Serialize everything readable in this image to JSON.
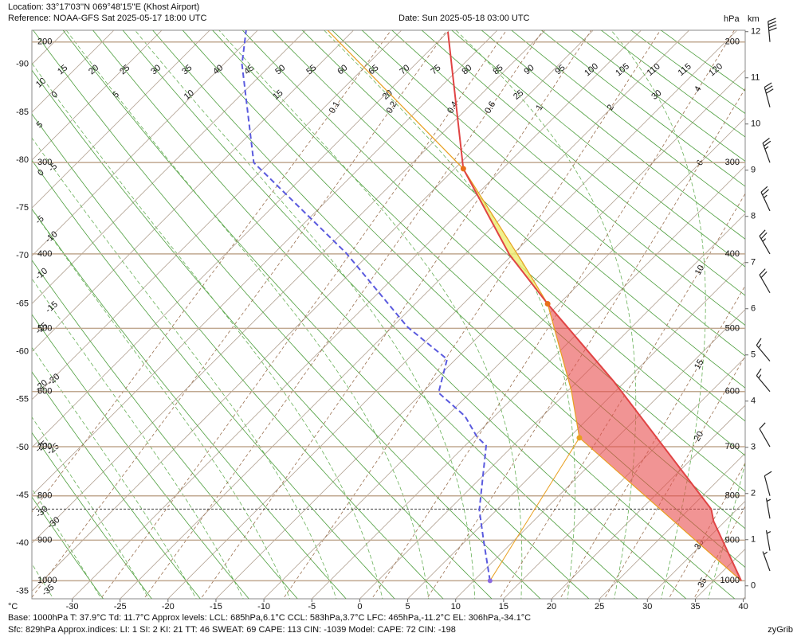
{
  "header": {
    "location": "Location:  33°17'03''N  069°48'15''E (Khost Airport)",
    "reference": "Reference: NOAA-GFS Sat 2025-05-17 18:00 UTC",
    "date": "Date: Sun 2025-05-18 03:00 UTC"
  },
  "footer": {
    "line1": "Base: 1000hPa  T: 37.9°C  Td: 11.7°C     Approx levels:  LCL: 685hPa,6.1°C   CCL: 583hPa,3.7°C   LFC: 465hPa,-11.2°C   EL: 306hPa,-34.1°C",
    "line2": "Sfc: 829hPa        Approx.indices:  LI: 1   SI: 2   KI: 21   TT: 46   SWEAT: 69      CAPE: 113   CIN: -1039          Model: CAPE: 72 CIN: -198",
    "credit": "zyGrib"
  },
  "chart_data": {
    "type": "skewt",
    "x_label": "°C",
    "pressure_unit": "hPa",
    "height_unit": "km",
    "xlim": [
      -34.2,
      40.2
    ],
    "xticks": [
      -30,
      -25,
      -20,
      -15,
      -10,
      -5,
      0,
      5,
      10,
      15,
      20,
      25,
      30,
      35,
      40
    ],
    "ylim": [
      -0.28,
      12.03
    ],
    "yticks": [
      0,
      1,
      2,
      3,
      4,
      5,
      6,
      7,
      8,
      9,
      10,
      11,
      12
    ],
    "isotherm_labels": [
      -90,
      -85,
      -80,
      -75,
      -70,
      -65,
      -60,
      -55,
      -50,
      -45,
      -40,
      -35
    ],
    "pressure_levels": [
      1000,
      900,
      800,
      700,
      600,
      500,
      400,
      300,
      200
    ],
    "surface_pressure": 829,
    "dry_adiabats": [
      -30,
      -25,
      -20,
      -15,
      -10,
      -5,
      0,
      5,
      10,
      15,
      20,
      25,
      30,
      35,
      40,
      45,
      50,
      55,
      60,
      65,
      70,
      75,
      80,
      85,
      90,
      95,
      100,
      105,
      110,
      115,
      120
    ],
    "moist_adiabats": [
      -35,
      -30,
      -25,
      -20,
      -15,
      -10,
      -5,
      0,
      5,
      10,
      15,
      20,
      25,
      30,
      35
    ],
    "mixing_ratios": [
      0.1,
      0.2,
      0.4,
      0.6,
      1,
      2,
      4,
      6,
      10,
      15,
      20,
      30,
      35
    ],
    "temperature": {
      "color": "#e04444",
      "pressure": [
        1000,
        856,
        829,
        583,
        465,
        401,
        306,
        193
      ],
      "values": [
        37.9,
        28.8,
        27.3,
        3.8,
        -11.2,
        -20.3,
        -34.1,
        -50.0
      ]
    },
    "dewpoint": {
      "color": "#5a5ade",
      "pressure": [
        1000,
        902,
        831,
        698,
        681,
        643,
        602,
        547,
        498,
        399,
        300,
        216,
        192
      ],
      "values": [
        11.7,
        6.9,
        3.2,
        -2.8,
        -4.7,
        -8.1,
        -13.3,
        -15.9,
        -23.4,
        -37.5,
        -56.6,
        -68.1,
        -71.2
      ]
    },
    "parcel": {
      "color": "#e8a020",
      "pressure": [
        1000,
        683,
        598,
        465,
        410,
        306,
        191
      ],
      "values": [
        37.9,
        6.1,
        0.3,
        -11.2,
        -18.2,
        -34.1,
        -63.0
      ]
    },
    "mixing_line": {
      "color": "#e8a020",
      "pressure": [
        1000,
        683
      ],
      "values": [
        11.7,
        6.1
      ]
    },
    "cin_color": "#e84c4c",
    "cape_color": "#eeee70",
    "winds": [
      {
        "pressure": 975,
        "direction": 340,
        "speed": 5
      },
      {
        "pressure": 925,
        "direction": 350,
        "speed": 5
      },
      {
        "pressure": 850,
        "direction": 350,
        "speed": 5
      },
      {
        "pressure": 800,
        "direction": 345,
        "speed": 10
      },
      {
        "pressure": 700,
        "direction": 330,
        "speed": 10
      },
      {
        "pressure": 600,
        "direction": 320,
        "speed": 15
      },
      {
        "pressure": 550,
        "direction": 320,
        "speed": 15
      },
      {
        "pressure": 450,
        "direction": 330,
        "speed": 20
      },
      {
        "pressure": 400,
        "direction": 330,
        "speed": 25
      },
      {
        "pressure": 350,
        "direction": 335,
        "speed": 25
      },
      {
        "pressure": 300,
        "direction": 340,
        "speed": 25
      },
      {
        "pressure": 250,
        "direction": 345,
        "speed": 30
      },
      {
        "pressure": 200,
        "direction": 355,
        "speed": 40
      }
    ]
  }
}
